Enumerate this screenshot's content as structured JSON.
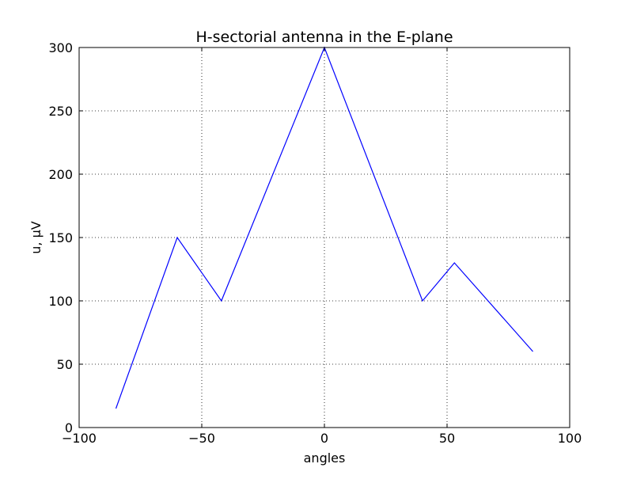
{
  "chart_data": {
    "type": "line",
    "title": "H-sectorial antenna in the E-plane",
    "xlabel": "angles",
    "ylabel": "u, μV",
    "xlim": [
      -100,
      100
    ],
    "ylim": [
      0,
      300
    ],
    "xticks": [
      -100,
      -50,
      0,
      50,
      100
    ],
    "xtick_labels": [
      "−100",
      "−50",
      "0",
      "50",
      "100"
    ],
    "yticks": [
      0,
      50,
      100,
      150,
      200,
      250,
      300
    ],
    "ytick_labels": [
      "0",
      "50",
      "100",
      "150",
      "200",
      "250",
      "300"
    ],
    "grid": true,
    "series": [
      {
        "color": "#0000ff",
        "x": [
          -85,
          -60,
          -42,
          0,
          40,
          53,
          85
        ],
        "y": [
          15,
          150,
          100,
          300,
          100,
          130,
          60
        ]
      }
    ]
  }
}
